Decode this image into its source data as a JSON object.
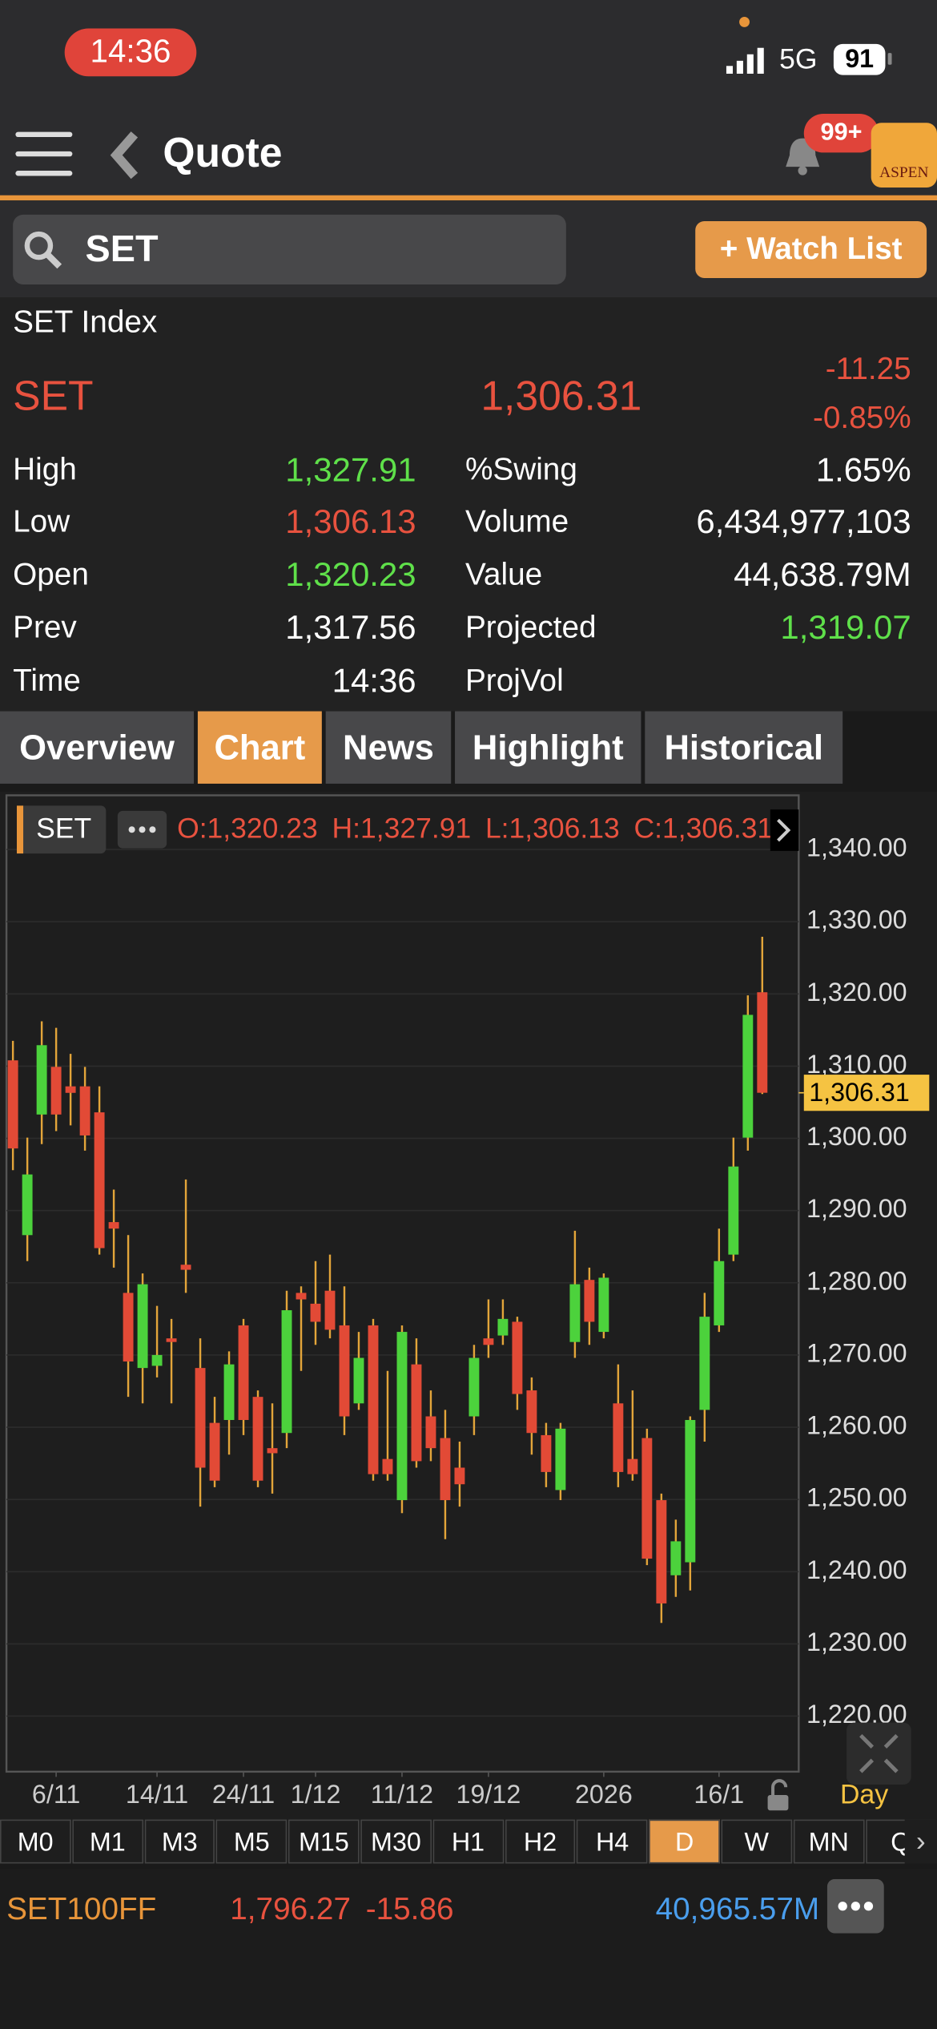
{
  "status": {
    "time": "14:36",
    "network": "5G",
    "battery": "91"
  },
  "header": {
    "title": "Quote",
    "badge": "99+",
    "logo": "ASPEN"
  },
  "search": {
    "query": "SET",
    "button": "+ Watch List"
  },
  "quote": {
    "name": "SET Index",
    "symbol": "SET",
    "last": "1,306.31",
    "change": "-11.25",
    "change_pct": "-0.85%",
    "left_stats": [
      {
        "label": "High",
        "value": "1,327.91",
        "color": "#5fe04a"
      },
      {
        "label": "Low",
        "value": "1,306.13",
        "color": "#e8523f"
      },
      {
        "label": "Open",
        "value": "1,320.23",
        "color": "#5fe04a"
      },
      {
        "label": "Prev",
        "value": "1,317.56",
        "color": "#ffffff"
      },
      {
        "label": "Time",
        "value": "14:36",
        "color": "#ffffff"
      }
    ],
    "right_stats": [
      {
        "label": "%Swing",
        "value": "1.65%",
        "color": "#ffffff"
      },
      {
        "label": "Volume",
        "value": "6,434,977,103",
        "color": "#ffffff"
      },
      {
        "label": "Value",
        "value": "44,638.79M",
        "color": "#ffffff"
      },
      {
        "label": "Projected",
        "value": "1,319.07",
        "color": "#5fe04a"
      },
      {
        "label": "ProjVol"
      }
    ]
  },
  "tabs": {
    "items": [
      "Overview",
      "Chart",
      "News",
      "Highlight",
      "Historical"
    ],
    "active": 1
  },
  "chart_data": {
    "type": "candlestick",
    "symbol": "SET",
    "legend": [
      "O:1,320.23",
      "H:1,327.91",
      "L:1,306.13",
      "C:1,306.31"
    ],
    "period": "Day",
    "up_color": "#4cd23c",
    "down_color": "#e24a36",
    "wick_color": "#e3a53a",
    "open": [
      1310.8,
      1286.6,
      1303.3,
      1309.9,
      1307.2,
      1307.2,
      1303.6,
      1288.4,
      1278.6,
      1268.2,
      1268.5,
      1272.3,
      1282.5,
      1268.2,
      1260.6,
      1261.0,
      1274.1,
      1264.2,
      1257.1,
      1259.2,
      1278.6,
      1277.1,
      1278.9,
      1274.1,
      1263.3,
      1274.1,
      1255.6,
      1249.9,
      1268.7,
      1261.5,
      1258.5,
      1254.4,
      1261.5,
      1272.3,
      1272.7,
      1274.6,
      1265.1,
      1258.9,
      1251.3,
      1271.8,
      1280.4,
      1273.2,
      1263.3,
      1255.6,
      1258.5,
      1249.9,
      1239.5,
      1241.3,
      1262.4,
      1274.1,
      1283.9,
      1300.1,
      1320.23
    ],
    "high": [
      1313.5,
      1300.1,
      1316.2,
      1315.3,
      1311.7,
      1309.9,
      1307.2,
      1292.9,
      1286.6,
      1281.3,
      1276.8,
      1275.0,
      1294.3,
      1272.3,
      1264.2,
      1270.5,
      1275.0,
      1265.1,
      1263.3,
      1278.9,
      1279.5,
      1283.0,
      1283.9,
      1279.5,
      1273.2,
      1275.0,
      1267.8,
      1274.1,
      1272.3,
      1265.1,
      1262.4,
      1258.0,
      1271.4,
      1277.7,
      1277.7,
      1275.3,
      1266.9,
      1260.6,
      1260.6,
      1287.2,
      1282.1,
      1281.3,
      1268.7,
      1265.1,
      1259.8,
      1250.8,
      1247.2,
      1261.5,
      1278.6,
      1287.5,
      1300.1,
      1319.8,
      1327.91
    ],
    "low": [
      1295.6,
      1283.0,
      1299.2,
      1301.0,
      1301.8,
      1298.3,
      1283.9,
      1282.1,
      1264.2,
      1263.3,
      1266.9,
      1263.3,
      1278.6,
      1249.0,
      1251.7,
      1256.2,
      1258.9,
      1251.7,
      1250.8,
      1257.1,
      1267.8,
      1271.4,
      1272.3,
      1258.9,
      1262.4,
      1252.6,
      1252.6,
      1248.1,
      1254.4,
      1255.3,
      1244.5,
      1249.0,
      1258.9,
      1269.6,
      1271.4,
      1262.4,
      1256.2,
      1251.7,
      1249.9,
      1269.6,
      1271.4,
      1272.3,
      1251.7,
      1252.6,
      1240.9,
      1232.9,
      1236.5,
      1237.4,
      1258.0,
      1273.2,
      1283.0,
      1298.3,
      1306.13
    ],
    "close": [
      1298.6,
      1295.0,
      1312.9,
      1303.3,
      1306.3,
      1300.4,
      1284.8,
      1287.5,
      1269.1,
      1279.8,
      1270.0,
      1271.8,
      1281.8,
      1254.4,
      1252.6,
      1268.7,
      1261.0,
      1252.6,
      1256.4,
      1276.2,
      1277.7,
      1274.6,
      1273.5,
      1261.5,
      1269.6,
      1253.5,
      1253.5,
      1273.2,
      1255.3,
      1257.1,
      1249.9,
      1252.1,
      1269.6,
      1271.4,
      1275.0,
      1264.6,
      1259.2,
      1253.8,
      1259.8,
      1279.8,
      1274.6,
      1280.7,
      1253.8,
      1253.5,
      1241.8,
      1235.6,
      1244.2,
      1261.0,
      1275.3,
      1283.0,
      1296.1,
      1317.1,
      1306.31
    ],
    "xticks": [
      {
        "value": 3,
        "label": "6/11"
      },
      {
        "value": 10,
        "label": "14/11"
      },
      {
        "value": 16,
        "label": "24/11"
      },
      {
        "value": 21,
        "label": "1/12"
      },
      {
        "value": 27,
        "label": "11/12"
      },
      {
        "value": 33,
        "label": "19/12"
      },
      {
        "value": 41,
        "label": "2026"
      },
      {
        "value": 49,
        "label": "16/1"
      }
    ],
    "ylim": [
      1212.3,
      1347.5
    ],
    "yticks": [
      {
        "value": 1220,
        "label": "1,220.00"
      },
      {
        "value": 1230,
        "label": "1,230.00"
      },
      {
        "value": 1240,
        "label": "1,240.00"
      },
      {
        "value": 1250,
        "label": "1,250.00"
      },
      {
        "value": 1260,
        "label": "1,260.00"
      },
      {
        "value": 1270,
        "label": "1,270.00"
      },
      {
        "value": 1280,
        "label": "1,280.00"
      },
      {
        "value": 1290,
        "label": "1,290.00"
      },
      {
        "value": 1300,
        "label": "1,300.00"
      },
      {
        "value": 1310,
        "label": "1,310.00"
      },
      {
        "value": 1320,
        "label": "1,320.00"
      },
      {
        "value": 1330,
        "label": "1,330.00"
      },
      {
        "value": 1340,
        "label": "1,340.00"
      }
    ],
    "price_marker": {
      "value": 1306.31,
      "label": "1,306.31"
    },
    "grid": true
  },
  "timeframes": {
    "items": [
      "M0",
      "M1",
      "M3",
      "M5",
      "M15",
      "M30",
      "H1",
      "H2",
      "H4",
      "D",
      "W",
      "MN",
      "Q"
    ],
    "active": 9
  },
  "footer": {
    "symbol": "SET100FF",
    "price": "1,796.27",
    "change": "-15.86",
    "value": "40,965.57M"
  }
}
